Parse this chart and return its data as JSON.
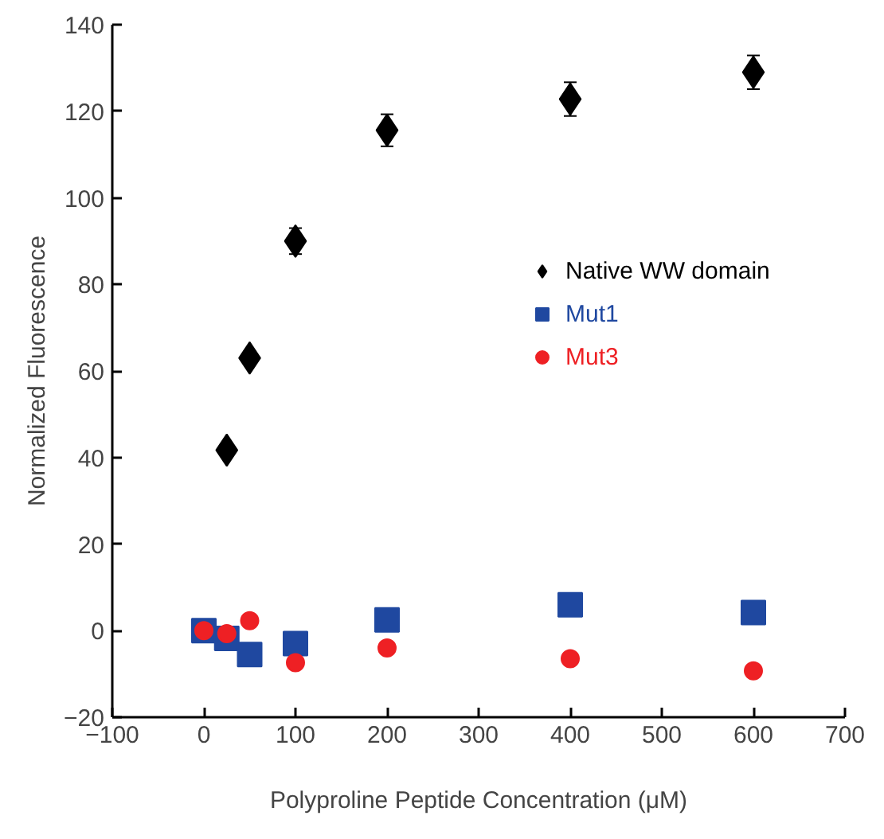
{
  "chart_data": {
    "type": "scatter",
    "xlabel": "Polyproline Peptide Concentration (μM)",
    "ylabel": "Normalized Fluorescence",
    "xlim": [
      -100,
      700
    ],
    "xticks": [
      -100,
      0,
      100,
      200,
      300,
      400,
      500,
      600,
      700
    ],
    "ylim": [
      -20,
      140
    ],
    "yticks": [
      -20,
      0,
      20,
      40,
      60,
      80,
      100,
      120,
      140
    ],
    "grid": false,
    "legend": "right",
    "series": [
      {
        "name": "Native WW domain",
        "color": "#000000",
        "marker": "diamond",
        "x": [
          25,
          50,
          100,
          200,
          400,
          600
        ],
        "values": [
          41.7,
          63,
          90,
          115.6,
          122.8,
          129
        ],
        "errors": [
          null,
          1.5,
          3,
          3.7,
          3.9,
          3.9
        ]
      },
      {
        "name": "Mut1",
        "color": "#1f48a0",
        "marker": "square",
        "x": [
          0,
          25,
          50,
          100,
          200,
          400,
          600
        ],
        "values": [
          0,
          -1.8,
          -5.5,
          -3,
          2.5,
          6,
          4.2
        ]
      },
      {
        "name": "Mut3",
        "color": "#ee2024",
        "marker": "circle",
        "x": [
          0,
          25,
          50,
          100,
          200,
          400,
          600
        ],
        "values": [
          0,
          -0.7,
          2.3,
          -7.4,
          -4,
          -6.5,
          -9.3
        ]
      }
    ]
  }
}
